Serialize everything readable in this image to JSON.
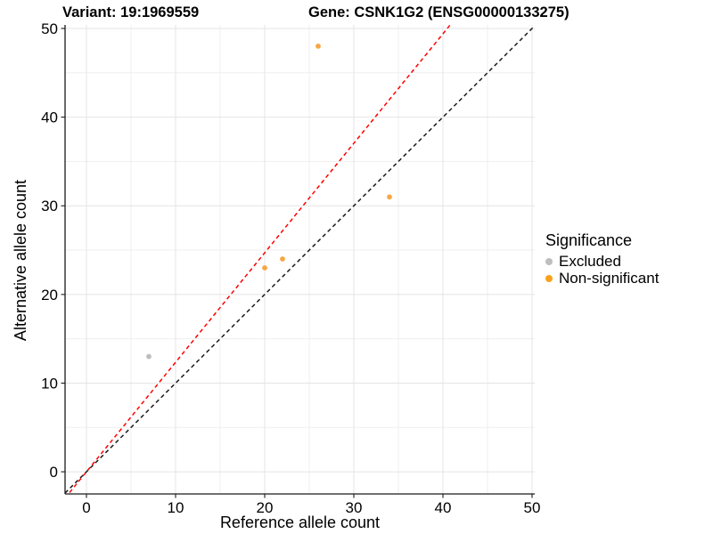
{
  "header": {
    "variant_title": "Variant: 19:1969559",
    "gene_title": "Gene: CSNK1G2 (ENSG00000133275)"
  },
  "axes": {
    "x_label": "Reference allele count",
    "y_label": "Alternative allele count"
  },
  "legend": {
    "title": "Significance",
    "items": [
      {
        "label": "Excluded",
        "color": "#BEBEBE"
      },
      {
        "label": "Non-significant",
        "color": "#F9A11B"
      }
    ]
  },
  "colors": {
    "excluded_point": "#BEBEBE",
    "non_significant_point": "#F9A643",
    "identity_line": "#1a1a1a",
    "fit_line": "#FF0000",
    "grid_major": "#e4e4e4",
    "grid_minor": "#efefef",
    "axis_line": "#1a1a1a",
    "text": "#000000"
  },
  "chart_data": {
    "type": "scatter",
    "title": "Variant: 19:1969559 — Gene: CSNK1G2 (ENSG00000133275)",
    "xlabel": "Reference allele count",
    "ylabel": "Alternative allele count",
    "xlim": [
      -2.4,
      50.3
    ],
    "ylim": [
      -2.5,
      50.4
    ],
    "x_ticks": [
      0,
      10,
      20,
      30,
      40,
      50
    ],
    "y_ticks": [
      0,
      10,
      20,
      30,
      40,
      50
    ],
    "x_minor_ticks": [
      5,
      15,
      25,
      35,
      45
    ],
    "y_minor_ticks": [
      5,
      15,
      25,
      35,
      45
    ],
    "grid": "major and minor gridlines on, white background",
    "legend_position": "right",
    "series": [
      {
        "name": "Excluded",
        "color": "#BEBEBE",
        "points": [
          {
            "x": 7,
            "y": 13
          }
        ]
      },
      {
        "name": "Non-significant",
        "color": "#F9A643",
        "points": [
          {
            "x": 20,
            "y": 23
          },
          {
            "x": 22,
            "y": 24
          },
          {
            "x": 26,
            "y": 48
          },
          {
            "x": 34,
            "y": 31
          }
        ]
      }
    ],
    "reference_lines": [
      {
        "name": "identity",
        "slope": 1.0,
        "intercept": 0,
        "color": "#1a1a1a",
        "style": "dashed"
      },
      {
        "name": "expected-ratio",
        "slope": 1.235,
        "intercept": 0,
        "color": "#FF0000",
        "style": "dashed"
      }
    ]
  }
}
